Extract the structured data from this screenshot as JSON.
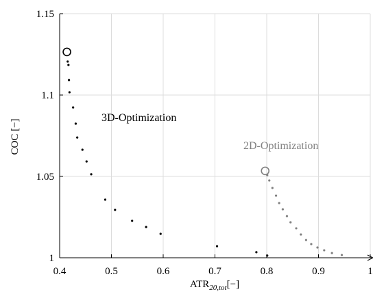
{
  "chart_data": {
    "type": "scatter",
    "xlabel": {
      "main": "ATR",
      "sub": "20,tot",
      "unit": "[−]"
    },
    "ylabel": "COC [−]",
    "xlim": [
      0.4,
      1.0
    ],
    "ylim": [
      1.0,
      1.15
    ],
    "xticks": [
      0.4,
      0.5,
      0.6,
      0.7,
      0.8,
      0.9,
      1
    ],
    "yticks": [
      1,
      1.05,
      1.1,
      1.15
    ],
    "grid": true,
    "series": [
      {
        "name": "3D-Optimization",
        "color": "#000000",
        "highlight_x": 0.414,
        "highlight_y": 1.1265,
        "x": [
          0.4155,
          0.417,
          0.418,
          0.419,
          0.426,
          0.431,
          0.434,
          0.444,
          0.452,
          0.461,
          0.488,
          0.507,
          0.54,
          0.567,
          0.595,
          0.704,
          0.78,
          0.801
        ],
        "values": [
          1.1206,
          1.1185,
          1.1092,
          1.1017,
          1.0924,
          1.0824,
          1.0739,
          1.0664,
          1.0592,
          1.0513,
          1.0357,
          1.0294,
          1.0227,
          1.0189,
          1.0147,
          1.0071,
          1.0034,
          1.0013
        ]
      },
      {
        "name": "2D-Optimization",
        "color": "#808080",
        "highlight_x": 0.797,
        "highlight_y": 1.0534,
        "x": [
          0.801,
          0.805,
          0.811,
          0.818,
          0.824,
          0.831,
          0.839,
          0.846,
          0.857,
          0.866,
          0.876,
          0.886,
          0.898,
          0.911,
          0.926,
          0.945
        ],
        "values": [
          1.0508,
          1.0475,
          1.0429,
          1.0382,
          1.0336,
          1.0298,
          1.0256,
          1.0218,
          1.0181,
          1.0143,
          1.0109,
          1.0084,
          1.0063,
          1.0046,
          1.0029,
          1.0017
        ]
      }
    ]
  }
}
